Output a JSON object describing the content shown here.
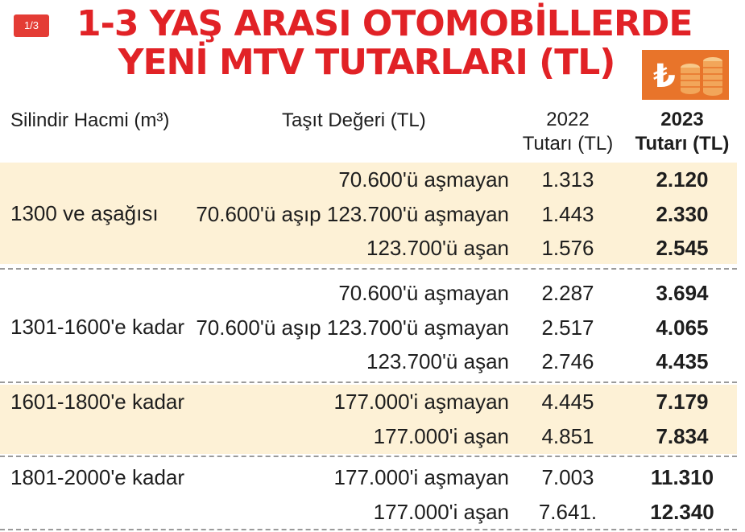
{
  "badge": "1/3",
  "title": {
    "line1": "1-3 YAŞ ARASI OTOMOBİLLERDE",
    "line2": "YENİ MTV TUTARLARI (TL)"
  },
  "icon": "lira-coins-icon",
  "columns": {
    "cylinder": "Silindir Hacmi (m³)",
    "value": "Taşıt Değeri (TL)",
    "y2022_line1": "2022",
    "y2022_line2": "Tutarı (TL)",
    "y2023_line1": "2023",
    "y2023_line2": "Tutarı (TL)"
  },
  "colors": {
    "title": "#e12226",
    "shaded": "#fdf1d6",
    "badge": "#e43c35"
  },
  "groups": [
    {
      "cylinder": "1300 ve aşağısı",
      "rows": [
        {
          "value": "70.600'ü aşmayan",
          "y2022": "1.313",
          "y2023": "2.120"
        },
        {
          "value": "70.600'ü aşıp 123.700'ü aşmayan",
          "y2022": "1.443",
          "y2023": "2.330"
        },
        {
          "value": "123.700'ü aşan",
          "y2022": "1.576",
          "y2023": "2.545"
        }
      ]
    },
    {
      "cylinder": "1301-1600'e kadar",
      "rows": [
        {
          "value": "70.600'ü aşmayan",
          "y2022": "2.287",
          "y2023": "3.694"
        },
        {
          "value": "70.600'ü aşıp 123.700'ü aşmayan",
          "y2022": "2.517",
          "y2023": "4.065"
        },
        {
          "value": "123.700'ü aşan",
          "y2022": "2.746",
          "y2023": "4.435"
        }
      ]
    },
    {
      "cylinder": "1601-1800'e kadar",
      "rows": [
        {
          "value": "177.000'i aşmayan",
          "y2022": "4.445",
          "y2023": "7.179"
        },
        {
          "value": "177.000'i aşan",
          "y2022": "4.851",
          "y2023": "7.834"
        }
      ]
    },
    {
      "cylinder": "1801-2000'e kadar",
      "rows": [
        {
          "value": "177.000'i aşmayan",
          "y2022": "7.003",
          "y2023": "11.310"
        },
        {
          "value": "177.000'i aşan",
          "y2022": "7.641.",
          "y2023": "12.340"
        }
      ]
    }
  ]
}
